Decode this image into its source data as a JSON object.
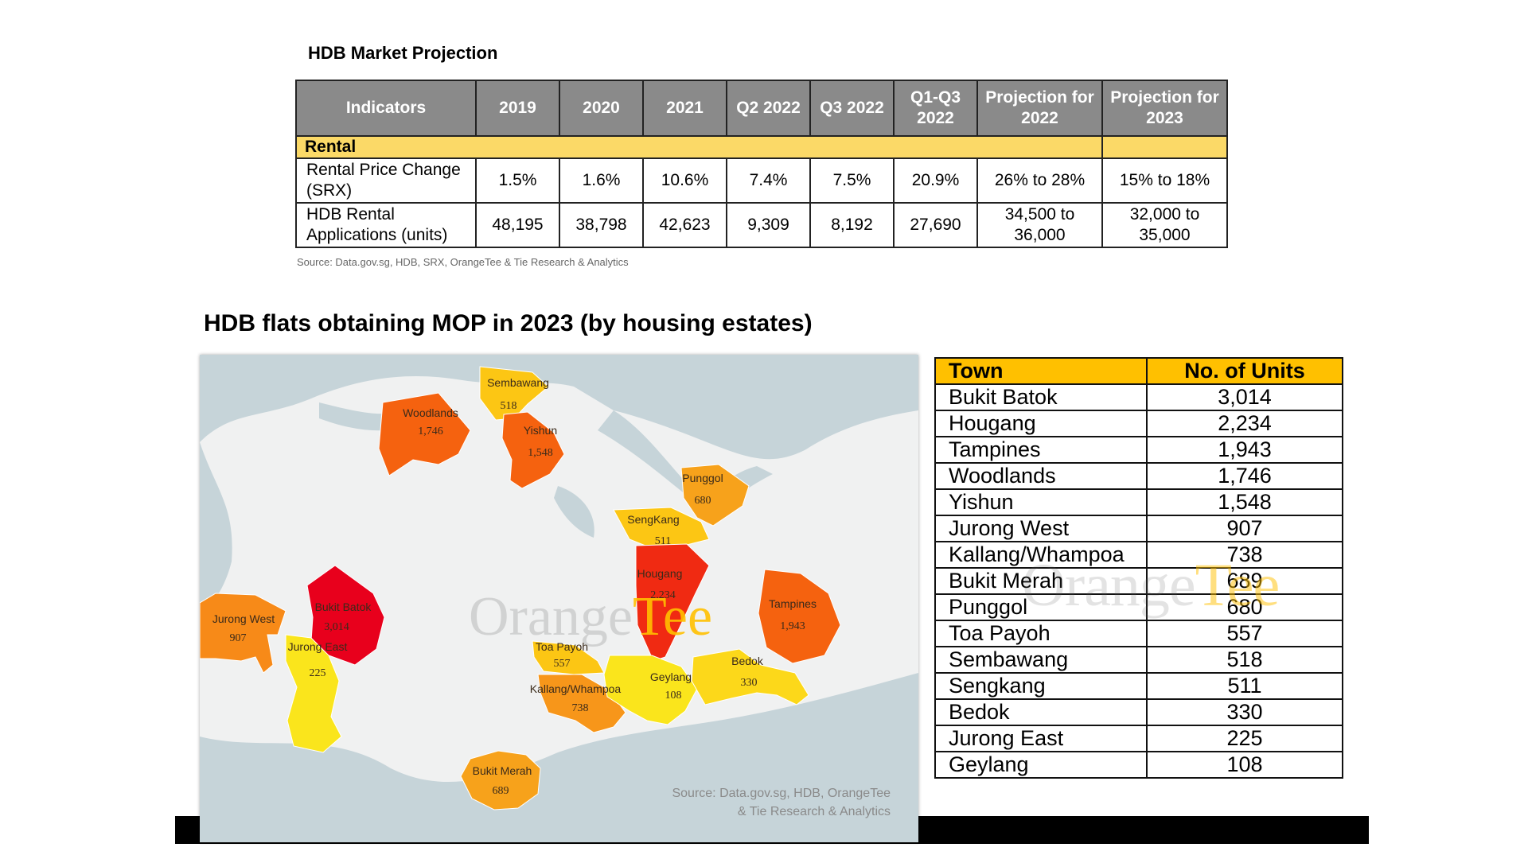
{
  "projection": {
    "title": "HDB Market Projection",
    "headers": {
      "indicators": "Indicators",
      "y2019": "2019",
      "y2020": "2020",
      "y2021": "2021",
      "q2_2022": "Q2 2022",
      "q3_2022": "Q3 2022",
      "q1q3_2022": "Q1-Q3 2022",
      "proj_2022": "Projection for 2022",
      "proj_2023": "Projection for 2023"
    },
    "section_label": "Rental",
    "rows": [
      {
        "indicator": "Rental Price Change (SRX)",
        "y2019": "1.5%",
        "y2020": "1.6%",
        "y2021": "10.6%",
        "q2_2022": "7.4%",
        "q3_2022": "7.5%",
        "q1q3_2022": "20.9%",
        "proj_2022": "26% to 28%",
        "proj_2023": "15% to 18%"
      },
      {
        "indicator": "HDB Rental Applications (units)",
        "y2019": "48,195",
        "y2020": "38,798",
        "y2021": "42,623",
        "q2_2022": "9,309",
        "q3_2022": "8,192",
        "q1q3_2022": "27,690",
        "proj_2022": "34,500 to 36,000",
        "proj_2023": "32,000 to 35,000"
      }
    ],
    "source": "Source: Data.gov.sg, HDB, SRX, OrangeTee & Tie Research & Analytics"
  },
  "mop": {
    "title": "HDB flats obtaining MOP in 2023 (by housing estates)",
    "map": {
      "watermark_main": "Orange",
      "watermark_accent": "Tee",
      "source_line1": "Source: Data.gov.sg, HDB, OrangeTee",
      "source_line2": "& Tie Research & Analytics",
      "regions": {
        "woodlands": {
          "name": "Woodlands",
          "value": "1,746",
          "color": "#f5620f"
        },
        "sembawang": {
          "name": "Sembawang",
          "value": "518",
          "color": "#fcc614"
        },
        "yishun": {
          "name": "Yishun",
          "value": "1,548",
          "color": "#f5620f"
        },
        "punggol": {
          "name": "Punggol",
          "value": "680",
          "color": "#f7a21b"
        },
        "sengkang": {
          "name": "SengKang",
          "value": "511",
          "color": "#fcc614"
        },
        "hougang": {
          "name": "Hougang",
          "value": "2,234",
          "color": "#f02a12"
        },
        "tampines": {
          "name": "Tampines",
          "value": "1,943",
          "color": "#f5620f"
        },
        "jurong_west": {
          "name": "Jurong West",
          "value": "907",
          "color": "#f78a18"
        },
        "bukit_batok": {
          "name": "Bukit Batok",
          "value": "3,014",
          "color": "#e8001c"
        },
        "jurong_east": {
          "name": "Jurong East",
          "value": "225",
          "color": "#fae51c"
        },
        "toa_payoh": {
          "name": "Toa Payoh",
          "value": "557",
          "color": "#fcc614"
        },
        "kallang": {
          "name": "Kallang/Whampoa",
          "value": "738",
          "color": "#f7961a"
        },
        "geylang": {
          "name": "Geylang",
          "value": "108",
          "color": "#fae51c"
        },
        "bedok": {
          "name": "Bedok",
          "value": "330",
          "color": "#fcd81a"
        },
        "bukit_merah": {
          "name": "Bukit Merah",
          "value": "689",
          "color": "#f7a21b"
        }
      }
    },
    "table": {
      "town_header": "Town",
      "units_header": "No. of Units",
      "rows": [
        {
          "town": "Bukit Batok",
          "units": "3,014"
        },
        {
          "town": "Hougang",
          "units": "2,234"
        },
        {
          "town": "Tampines",
          "units": "1,943"
        },
        {
          "town": "Woodlands",
          "units": "1,746"
        },
        {
          "town": "Yishun",
          "units": "1,548"
        },
        {
          "town": "Jurong West",
          "units": "907"
        },
        {
          "town": "Kallang/Whampoa",
          "units": "738"
        },
        {
          "town": "Bukit Merah",
          "units": "689"
        },
        {
          "town": "Punggol",
          "units": "680"
        },
        {
          "town": "Toa Payoh",
          "units": "557"
        },
        {
          "town": "Sembawang",
          "units": "518"
        },
        {
          "town": "Sengkang",
          "units": "511"
        },
        {
          "town": "Bedok",
          "units": "330"
        },
        {
          "town": "Jurong East",
          "units": "225"
        },
        {
          "town": "Geylang",
          "units": "108"
        }
      ],
      "watermark_main": "Orange",
      "watermark_accent": "Tee"
    }
  }
}
